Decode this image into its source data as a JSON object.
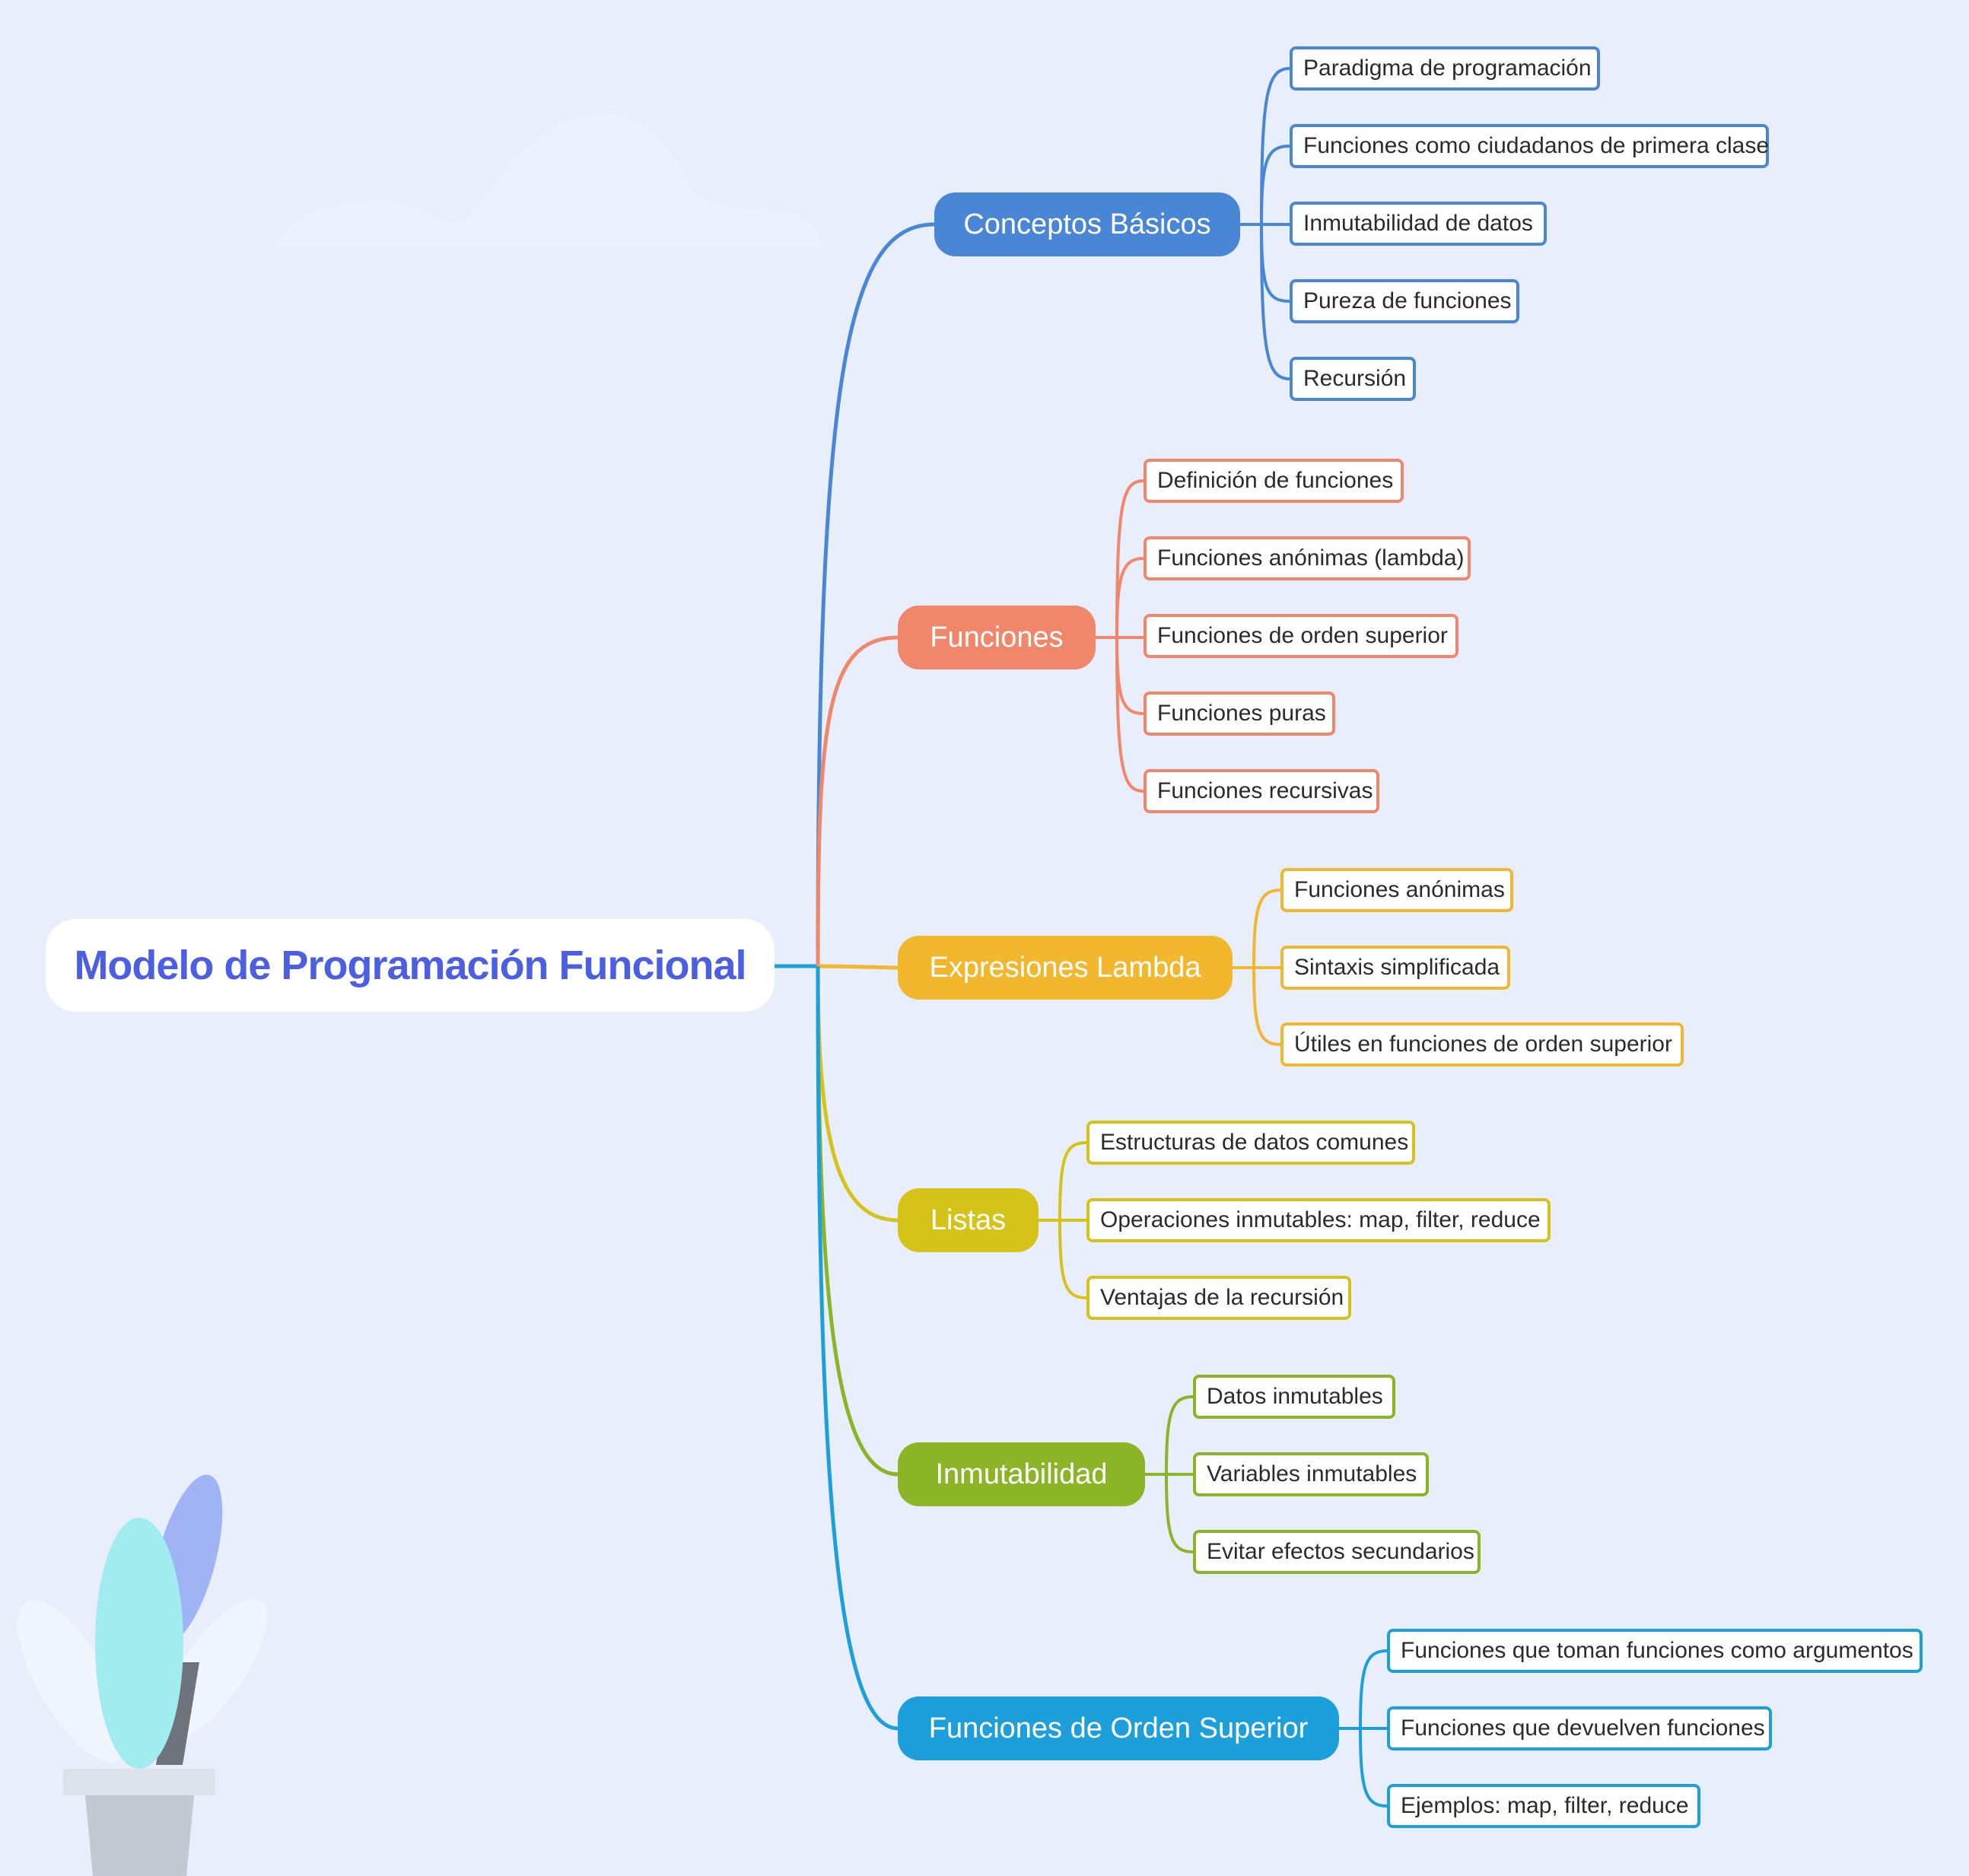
{
  "colors": {
    "background": "#e8eefc",
    "root_text": "#4c5fe0",
    "conceptos": "#4a86d6",
    "funciones": "#f0866a",
    "lambda": "#f2b72d",
    "listas": "#d6c319",
    "inmutabilidad": "#8bb526",
    "orden_superior": "#1d9fdb"
  },
  "root": {
    "label": "Modelo de Programación Funcional"
  },
  "branches": {
    "conceptos": {
      "label": "Conceptos Básicos",
      "items": [
        "Paradigma de programación",
        "Funciones como ciudadanos de primera clase",
        "Inmutabilidad de datos",
        "Pureza de funciones",
        "Recursión"
      ]
    },
    "funciones": {
      "label": "Funciones",
      "items": [
        "Definición de funciones",
        "Funciones anónimas (lambda)",
        "Funciones de orden superior",
        "Funciones puras",
        "Funciones recursivas"
      ]
    },
    "lambda": {
      "label": "Expresiones Lambda",
      "items": [
        "Funciones anónimas",
        "Sintaxis simplificada",
        "Útiles en funciones de orden superior"
      ]
    },
    "listas": {
      "label": "Listas",
      "items": [
        "Estructuras de datos comunes",
        "Operaciones inmutables: map, filter, reduce",
        "Ventajas de la recursión"
      ]
    },
    "inmutabilidad": {
      "label": "Inmutabilidad",
      "items": [
        "Datos inmutables",
        "Variables inmutables",
        "Evitar efectos secundarios"
      ]
    },
    "orden_superior": {
      "label": "Funciones de Orden Superior",
      "items": [
        "Funciones que toman funciones como argumentos",
        "Funciones que devuelven funciones",
        "Ejemplos: map, filter, reduce"
      ]
    }
  }
}
